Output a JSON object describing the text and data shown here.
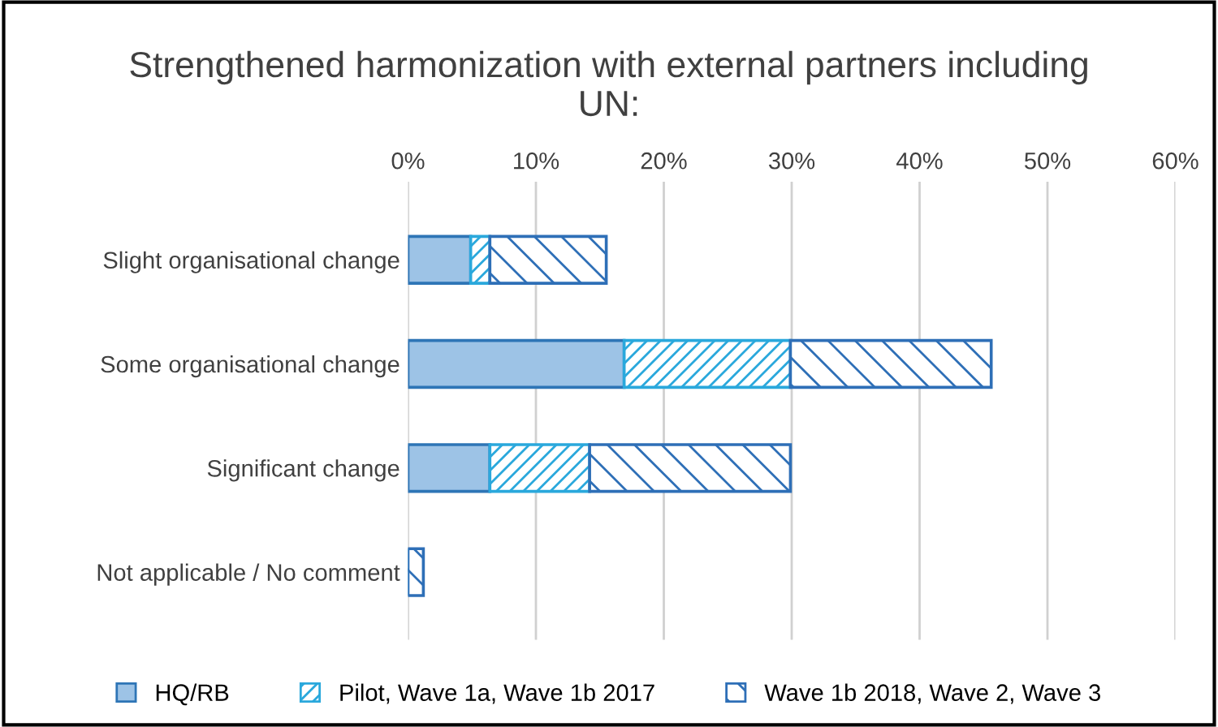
{
  "chart_data": {
    "type": "bar",
    "orientation": "horizontal",
    "stacked": true,
    "title": "Strengthened harmonization with external partners including UN:",
    "categories": [
      "Slight organisational change",
      "Some organisational change",
      "Significant change",
      "Not applicable / No comment"
    ],
    "series": [
      {
        "name": "HQ/RB",
        "color": "#9dc3e6",
        "values": [
          4.9,
          16.9,
          6.4,
          0
        ]
      },
      {
        "name": "Pilot, Wave 1a, Wave 1b 2017",
        "color": "#2aa8dc",
        "values": [
          1.5,
          13.0,
          7.8,
          0
        ]
      },
      {
        "name": "Wave 1b 2018, Wave 2, Wave 3",
        "color": "#2e6fb7",
        "values": [
          9.1,
          15.7,
          15.7,
          1.2
        ]
      }
    ],
    "xlim": [
      0,
      60
    ],
    "xticks": [
      {
        "value": 0,
        "label": "0%"
      },
      {
        "value": 10,
        "label": "10%"
      },
      {
        "value": 20,
        "label": "20%"
      },
      {
        "value": 30,
        "label": "30%"
      },
      {
        "value": 40,
        "label": "40%"
      },
      {
        "value": 50,
        "label": "50%"
      },
      {
        "value": 60,
        "label": "60%"
      }
    ],
    "grid": "x",
    "legend": "bottom"
  }
}
